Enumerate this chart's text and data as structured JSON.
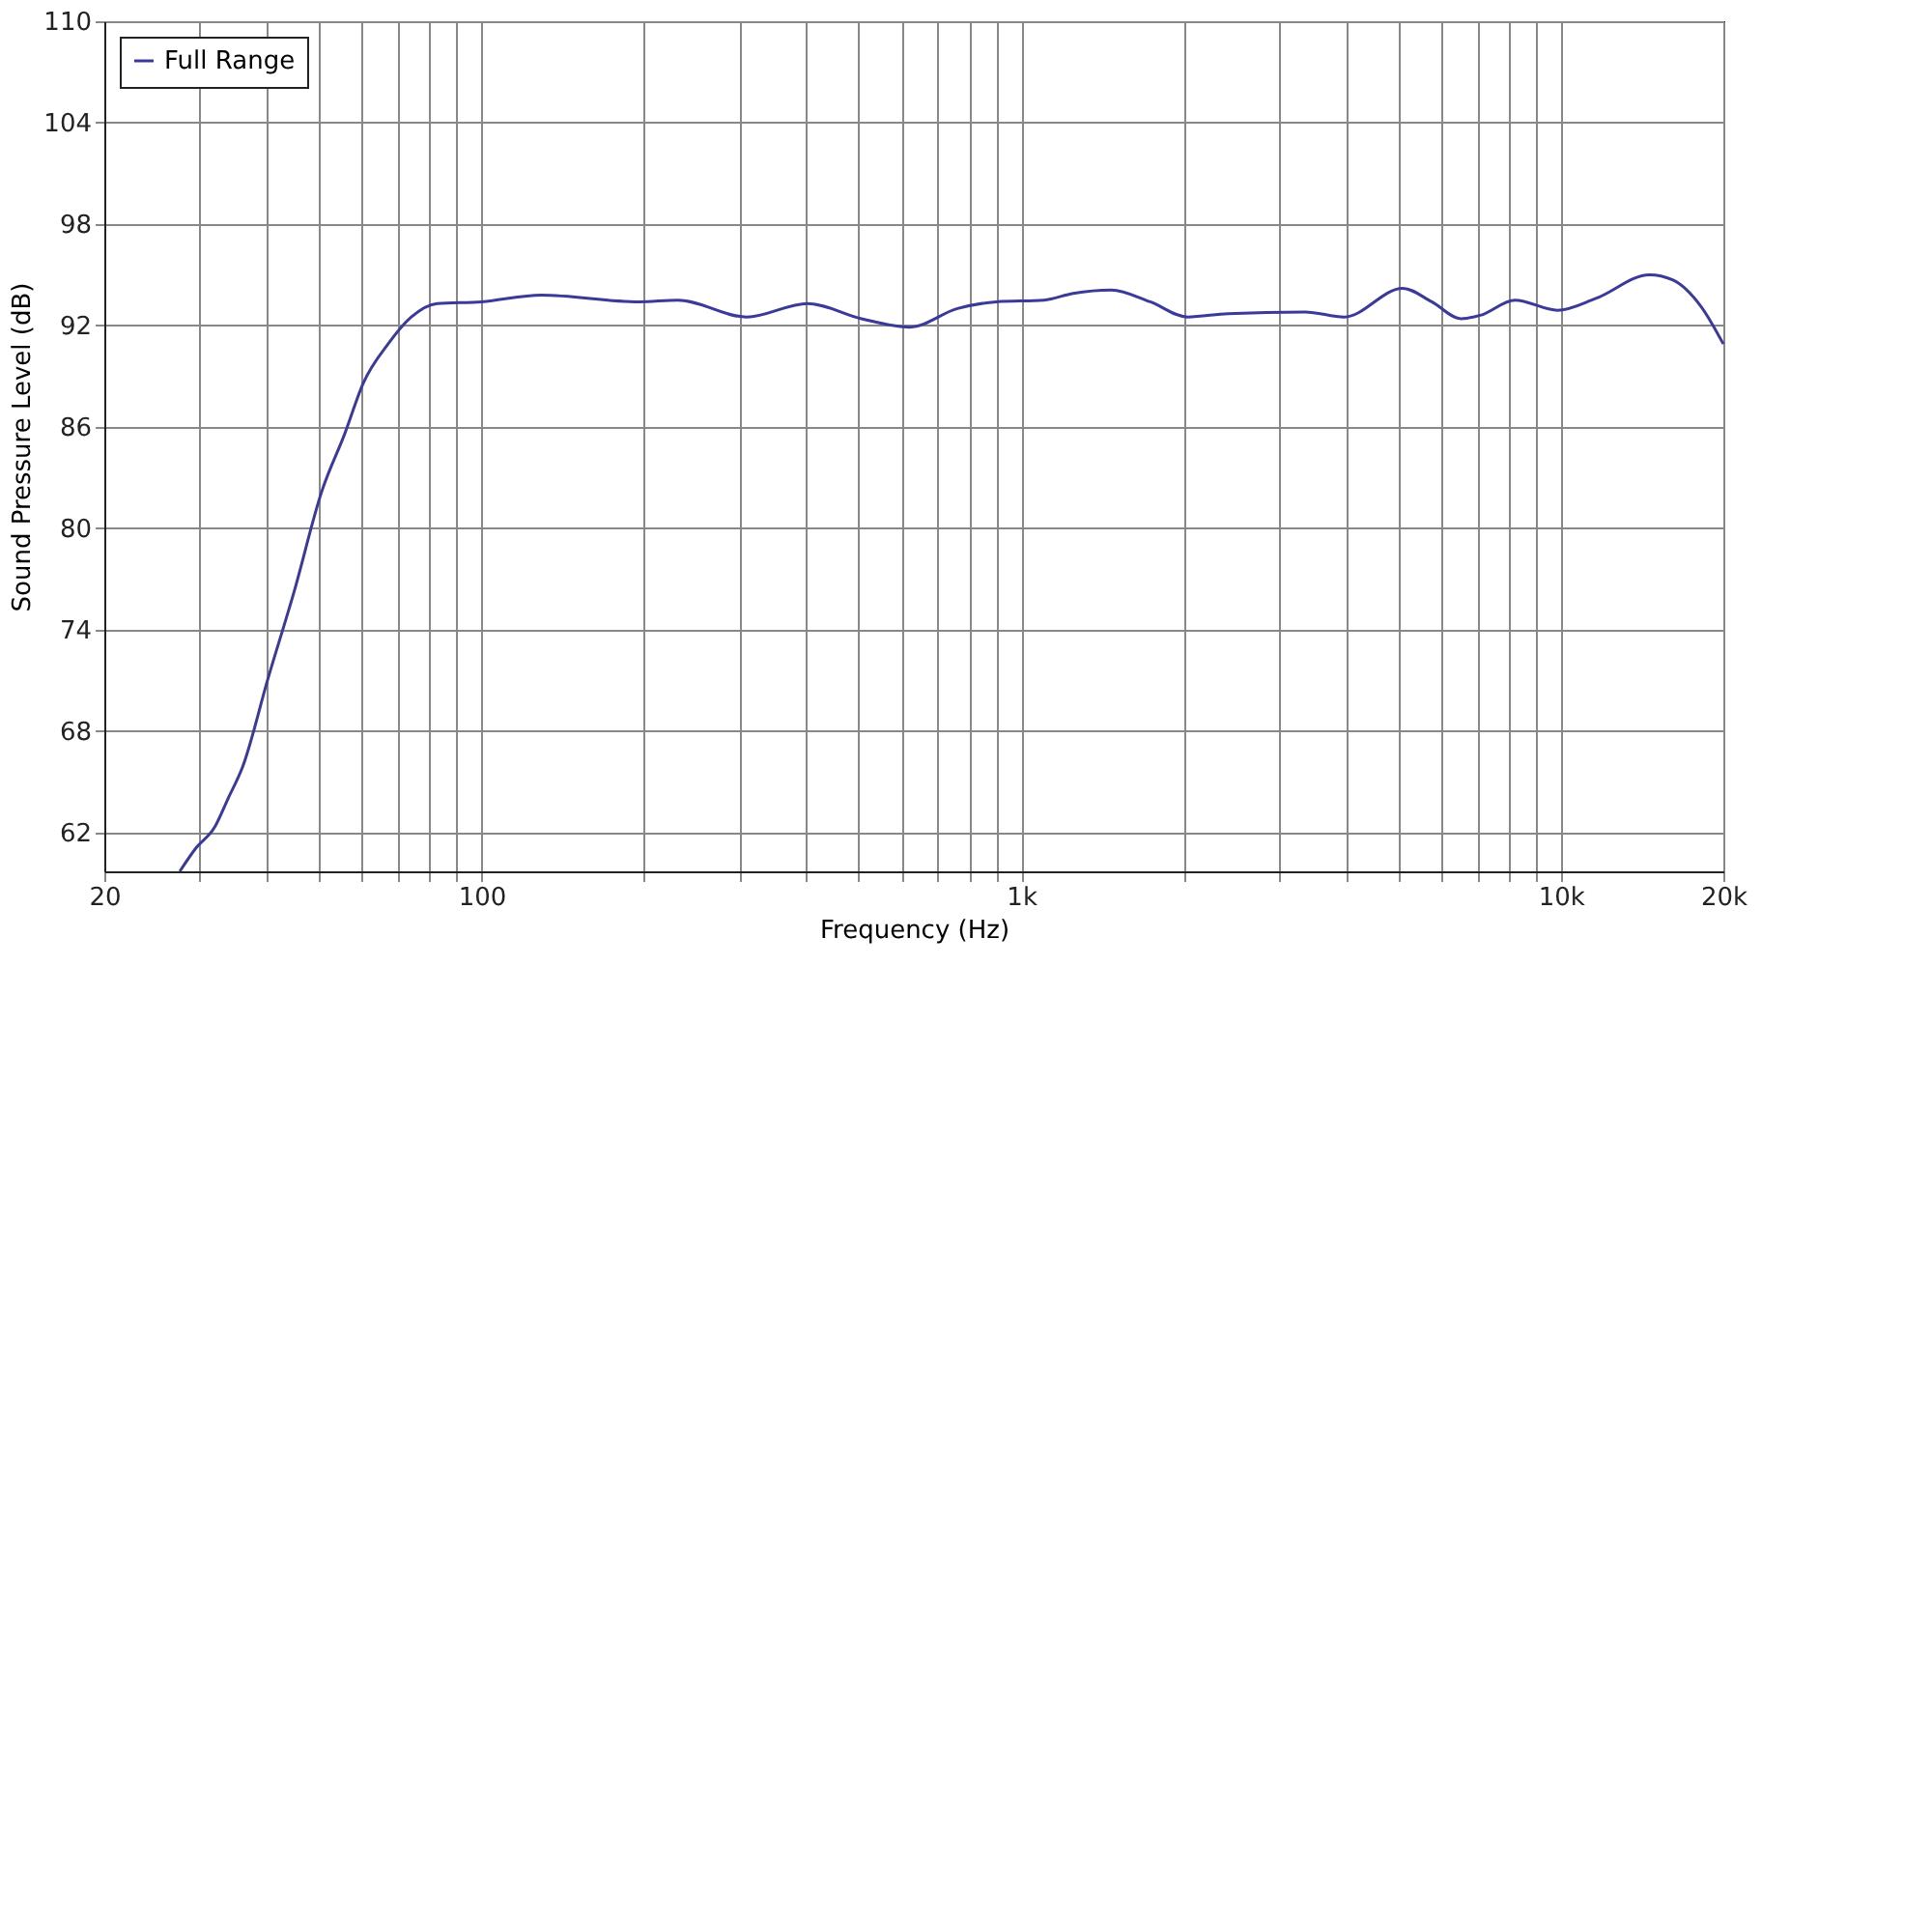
{
  "chart_data": {
    "type": "line",
    "xlabel": "Frequency (Hz)",
    "ylabel": "Sound Pressure Level (dB)",
    "log": "x",
    "grid": true,
    "legend": "top left",
    "marker": "none",
    "line_style": "solid",
    "xlim": [
      20,
      20000
    ],
    "ylim": [
      59.7,
      110
    ],
    "xticks": [
      20,
      {
        "value": 30,
        "label": null
      },
      {
        "value": 40,
        "label": null
      },
      {
        "value": 50,
        "label": null
      },
      {
        "value": 60,
        "label": null
      },
      {
        "value": 70,
        "label": null
      },
      {
        "value": 80,
        "label": null
      },
      {
        "value": 90,
        "label": null
      },
      100,
      {
        "value": 200,
        "label": null
      },
      {
        "value": 300,
        "label": null
      },
      {
        "value": 400,
        "label": null
      },
      {
        "value": 500,
        "label": null
      },
      {
        "value": 600,
        "label": null
      },
      {
        "value": 700,
        "label": null
      },
      {
        "value": 800,
        "label": null
      },
      {
        "value": 900,
        "label": null
      },
      {
        "value": 1000,
        "label": "1k"
      },
      {
        "value": 2000,
        "label": null
      },
      {
        "value": 3000,
        "label": null
      },
      {
        "value": 4000,
        "label": null
      },
      {
        "value": 5000,
        "label": null
      },
      {
        "value": 6000,
        "label": null
      },
      {
        "value": 7000,
        "label": null
      },
      {
        "value": 8000,
        "label": null
      },
      {
        "value": 9000,
        "label": null
      },
      {
        "value": 10000,
        "label": "10k"
      },
      {
        "value": 20000,
        "label": "20k"
      }
    ],
    "yticks": [
      62,
      68,
      74,
      80,
      86,
      92,
      98,
      104,
      110
    ],
    "series": [
      {
        "name": "Full Range",
        "color": "#3a3a9a",
        "x": [
          27.6,
          29.6,
          32.0,
          33.9,
          36.1,
          40.2,
          44.9,
          50.6,
          55.8,
          60.4,
          67.1,
          74.1,
          82.8,
          100,
          129,
          196,
          231,
          310,
          402,
          506,
          622,
          762,
          900,
          1102,
          1248,
          1468,
          1734,
          2033,
          2416,
          3357,
          3970,
          5089,
          5765,
          6528,
          7089,
          8221,
          9857,
          11610,
          14600,
          16100,
          18200,
          20000
        ],
        "values": [
          59.7,
          61.1,
          62.3,
          64.0,
          65.9,
          71.1,
          76.2,
          82.2,
          85.6,
          88.6,
          90.9,
          92.5,
          93.3,
          93.4,
          93.8,
          93.4,
          93.5,
          92.5,
          93.3,
          92.4,
          91.9,
          93.0,
          93.4,
          93.5,
          93.9,
          94.1,
          93.4,
          92.5,
          92.7,
          92.8,
          92.5,
          94.2,
          93.4,
          92.4,
          92.6,
          93.5,
          92.9,
          93.6,
          95.0,
          94.7,
          93.1,
          90.9
        ]
      }
    ]
  }
}
